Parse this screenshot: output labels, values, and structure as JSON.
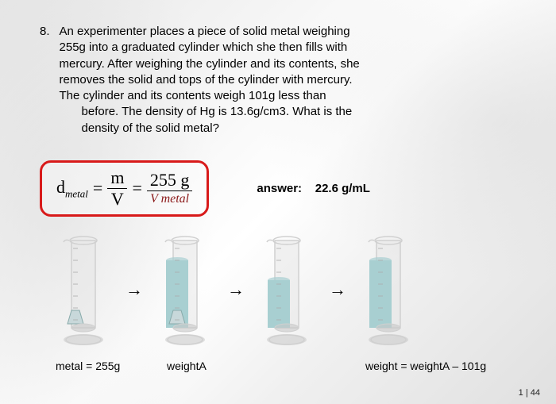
{
  "question": {
    "number": "8.",
    "line1": "An experimenter places a piece of solid metal weighing",
    "line2": "255g into a graduated cylinder which she then fills with",
    "line3": "mercury.  After weighing the cylinder and its contents, she",
    "line4": "removes the solid and tops of the cylinder with mercury.",
    "line5": "The cylinder and its contents weigh 101g less than",
    "line6": "before.  The density of Hg is 13.6g/cm3.  What is the",
    "line7": "density of the solid metal?"
  },
  "formula": {
    "d": "d",
    "metal_sub": "metal",
    "eq": "=",
    "m": "m",
    "V": "V",
    "mass": "255 g",
    "vmetal": "V metal"
  },
  "answer": {
    "label": "answer:",
    "value": "22.6 g/mL"
  },
  "cylinders": {
    "fill_color": "#a8cfd1",
    "glass_color": "#d0d0d0",
    "metal_color": "#c8d8da",
    "arrow": "→",
    "items": [
      {
        "fill_height": 0,
        "has_metal": true
      },
      {
        "fill_height": 85,
        "has_metal": true
      },
      {
        "fill_height": 60,
        "has_metal": false
      },
      {
        "fill_height": 85,
        "has_metal": false
      }
    ]
  },
  "labels": {
    "l1": "metal = 255g",
    "l2": "weightA",
    "l4": "weight = weightA – 101g"
  },
  "page": "1 | 44"
}
